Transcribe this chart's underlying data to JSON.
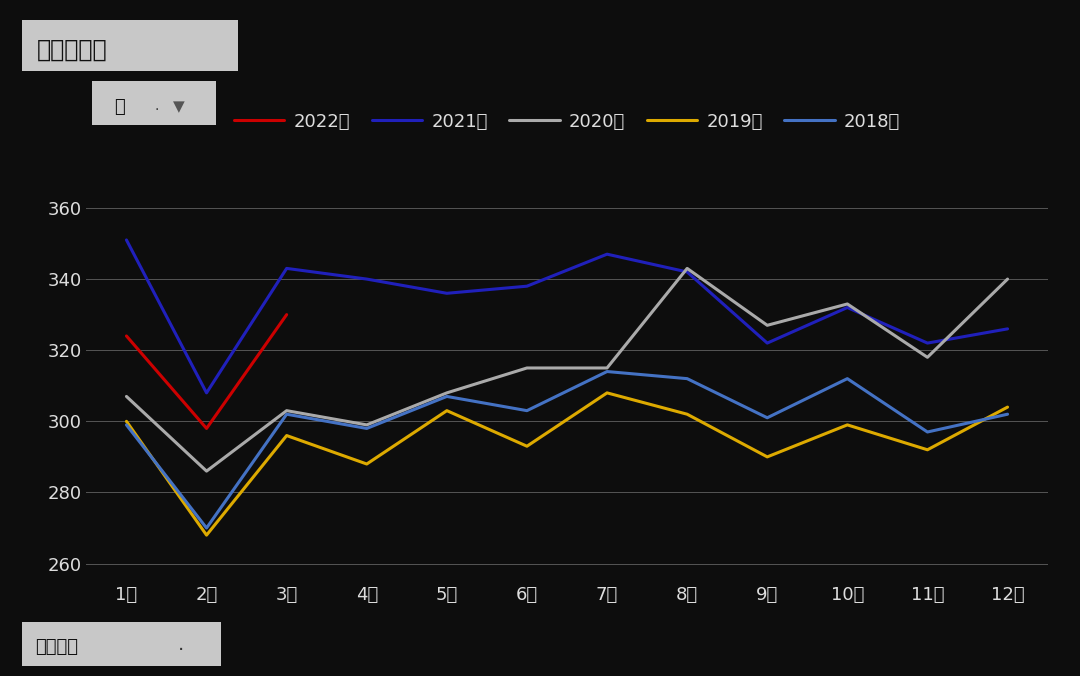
{
  "title": "表观消费量",
  "year_label": "年",
  "filter_symbol": "▼",
  "bottom_label": "指标名称",
  "bottom_dot": "·",
  "months": [
    "1月",
    "2月",
    "3月",
    "4月",
    "5月",
    "6月",
    "7月",
    "8月",
    "9月",
    "10月",
    "11月",
    "12月"
  ],
  "series": [
    {
      "label": "2022年",
      "color": "#cc0000",
      "linewidth": 2.2,
      "data": [
        324,
        298,
        330,
        null,
        null,
        null,
        null,
        null,
        null,
        null,
        null,
        null
      ]
    },
    {
      "label": "2021年",
      "color": "#2020bb",
      "linewidth": 2.2,
      "data": [
        351,
        308,
        343,
        340,
        336,
        338,
        347,
        342,
        322,
        332,
        322,
        326
      ]
    },
    {
      "label": "2020年",
      "color": "#aaaaaa",
      "linewidth": 2.2,
      "data": [
        307,
        286,
        303,
        299,
        308,
        315,
        315,
        343,
        327,
        333,
        318,
        340
      ]
    },
    {
      "label": "2019年",
      "color": "#ddaa00",
      "linewidth": 2.2,
      "data": [
        300,
        268,
        296,
        288,
        303,
        293,
        308,
        302,
        290,
        299,
        292,
        304
      ]
    },
    {
      "label": "2018年",
      "color": "#4472c4",
      "linewidth": 2.2,
      "data": [
        299,
        270,
        302,
        298,
        307,
        303,
        314,
        312,
        301,
        312,
        297,
        302
      ]
    }
  ],
  "ylim": [
    255,
    370
  ],
  "yticks": [
    260,
    280,
    300,
    320,
    340,
    360
  ],
  "background_color": "#0d0d0d",
  "plot_bg_color": "#0d0d0d",
  "text_color": "#dddddd",
  "grid_color": "#555555",
  "box_facecolor": "#c8c8c8",
  "title_fontsize": 17,
  "tick_fontsize": 13,
  "legend_fontsize": 13
}
